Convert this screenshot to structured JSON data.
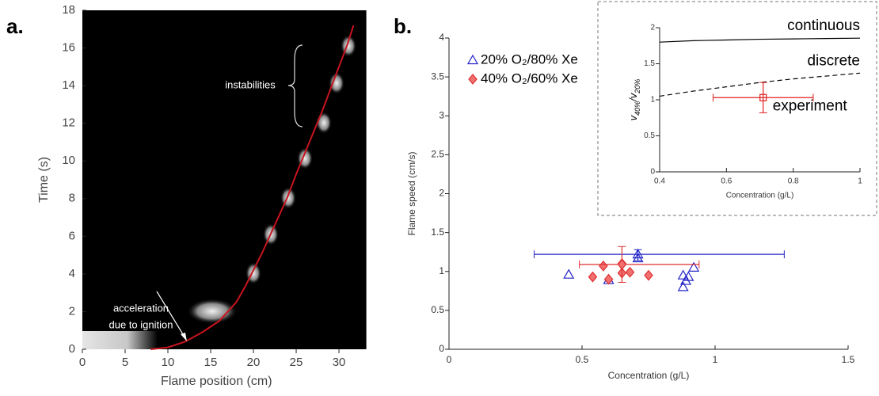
{
  "chart_data": [
    {
      "type": "line",
      "panel_label": "a.",
      "xlabel": "Flame position (cm)",
      "ylabel": "Time (s)",
      "xlim": [
        0,
        33.2
      ],
      "ylim": [
        0,
        18
      ],
      "xticks": [
        0,
        5,
        10,
        15,
        20,
        25,
        30
      ],
      "yticks": [
        0,
        2,
        4,
        6,
        8,
        10,
        12,
        14,
        16,
        18
      ],
      "background": "#000000",
      "color": "#c8141e",
      "x": [
        8,
        10,
        12,
        14,
        16,
        18,
        19,
        20,
        21,
        22,
        23,
        24,
        25,
        26,
        27,
        28,
        29,
        30,
        31,
        31.7
      ],
      "values": [
        0,
        0.1,
        0.4,
        0.9,
        1.5,
        2.5,
        3.3,
        4.2,
        5.1,
        6.1,
        7.1,
        8.1,
        9.3,
        10.4,
        11.5,
        12.6,
        13.8,
        15,
        16.2,
        17.2
      ],
      "annotations": [
        "acceleration",
        "due to ignition",
        "instabilities"
      ]
    },
    {
      "type": "scatter",
      "panel_label": "b.",
      "xlabel": "Concentration (g/L)",
      "ylabel": "Flame speed (cm/s)",
      "xlim": [
        0,
        1.5
      ],
      "ylim": [
        0,
        4
      ],
      "xticks": [
        0,
        0.5,
        1,
        1.5
      ],
      "yticks": [
        0,
        0.5,
        1,
        1.5,
        2,
        2.5,
        3,
        3.5,
        4
      ],
      "legend": "upper left",
      "series": [
        {
          "name": "20% O₂/80% Xe",
          "color": "#2323c8",
          "marker": "triangle",
          "x": [
            0.45,
            0.6,
            0.71,
            0.88,
            0.89,
            0.88,
            0.9,
            0.92
          ],
          "values": [
            0.96,
            0.89,
            1.17,
            0.8,
            0.88,
            0.95,
            0.93,
            1.05
          ],
          "errorbar": {
            "x": 0.71,
            "y": 1.22,
            "xmin": 0.32,
            "xmax": 1.26,
            "ymin": 1.14,
            "ymax": 1.28
          }
        },
        {
          "name": "40% O₂/60% Xe",
          "color": "#e03030",
          "marker": "diamond",
          "x": [
            0.54,
            0.58,
            0.6,
            0.65,
            0.65,
            0.68,
            0.75
          ],
          "values": [
            0.93,
            1.07,
            0.9,
            1.1,
            0.98,
            0.99,
            0.95
          ],
          "errorbar": {
            "x": 0.65,
            "y": 1.09,
            "xmin": 0.49,
            "xmax": 0.94,
            "ymin": 0.86,
            "ymax": 1.32
          }
        }
      ]
    },
    {
      "type": "line",
      "xlabel": "Concentration (g/L)",
      "ylabel": [
        {
          "text": "v",
          "sub": "40%"
        },
        {
          "text": "/v",
          "sub": "20%"
        }
      ],
      "xlim": [
        0.4,
        1
      ],
      "ylim": [
        0,
        2
      ],
      "xticks": [
        0.4,
        0.6,
        0.8,
        1
      ],
      "yticks": [
        0,
        0.5,
        1,
        1.5,
        2
      ],
      "x": [
        0.4,
        0.5,
        0.6,
        0.7,
        0.8,
        0.9,
        1
      ],
      "series": [
        {
          "name": "continuous",
          "color": "#000000",
          "dashed": false,
          "values": [
            1.8,
            1.82,
            1.83,
            1.84,
            1.845,
            1.85,
            1.855
          ]
        },
        {
          "name": "discrete",
          "color": "#000000",
          "dashed": true,
          "values": [
            1.05,
            1.12,
            1.18,
            1.24,
            1.29,
            1.33,
            1.37
          ]
        }
      ],
      "errorbar": {
        "name": "experiment",
        "color": "#e02020",
        "marker": "square",
        "x": 0.71,
        "y": 1.03,
        "xmin": 0.56,
        "xmax": 0.86,
        "ymin": 0.82,
        "ymax": 1.24
      }
    }
  ]
}
